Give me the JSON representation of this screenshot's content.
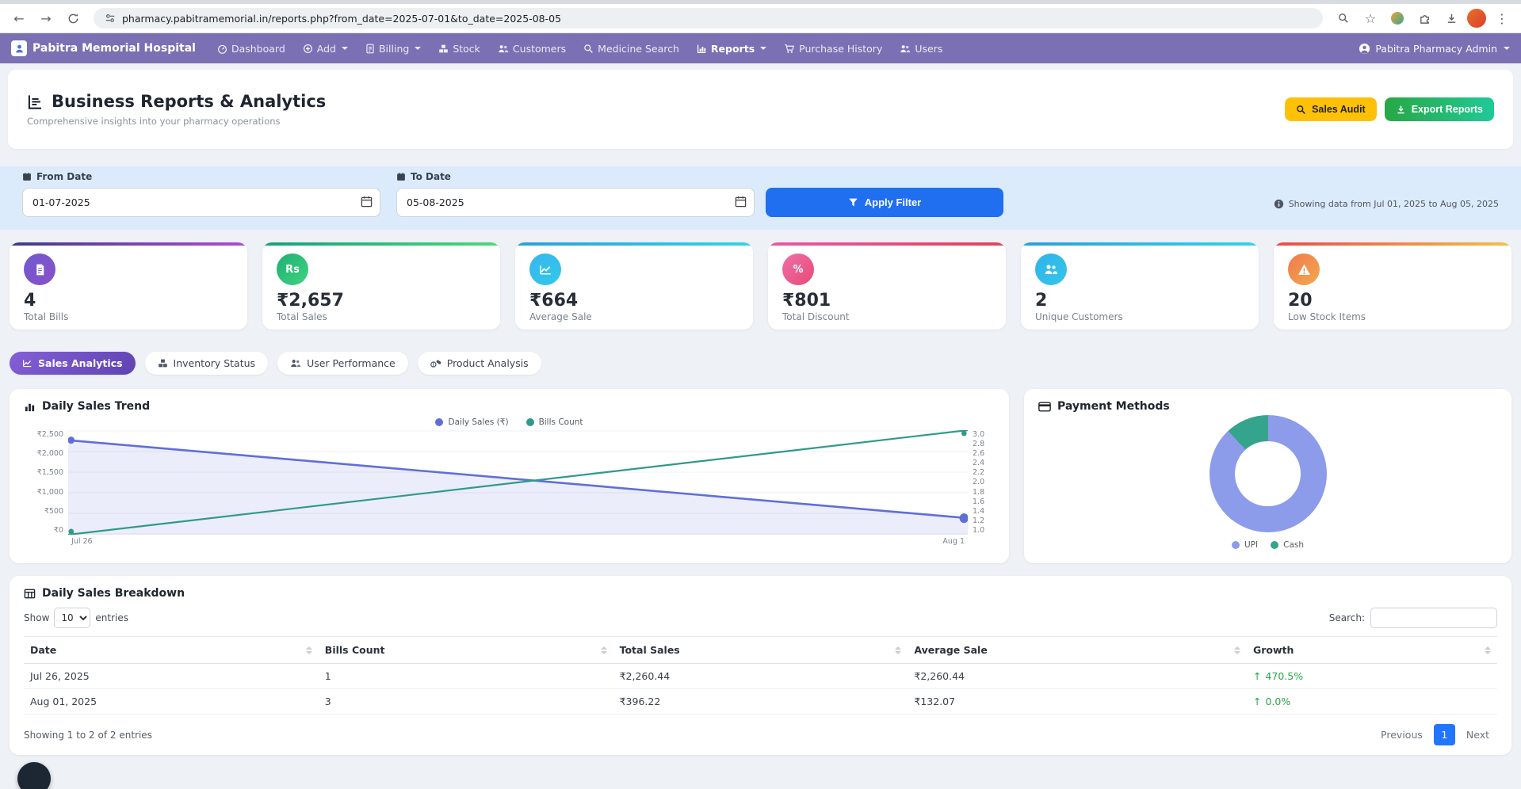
{
  "browser": {
    "url": "pharmacy.pabitramemorial.in/reports.php?from_date=2025-07-01&to_date=2025-08-05"
  },
  "navbar": {
    "brand": "Pabitra Memorial Hospital",
    "items": [
      {
        "label": "Dashboard"
      },
      {
        "label": "Add"
      },
      {
        "label": "Billing"
      },
      {
        "label": "Stock"
      },
      {
        "label": "Customers"
      },
      {
        "label": "Medicine Search"
      },
      {
        "label": "Reports"
      },
      {
        "label": "Purchase History"
      },
      {
        "label": "Users"
      }
    ],
    "user": "Pabitra Pharmacy Admin"
  },
  "header": {
    "title": "Business Reports & Analytics",
    "subtitle": "Comprehensive insights into your pharmacy operations",
    "sales_audit_label": "Sales Audit",
    "export_reports_label": "Export Reports"
  },
  "filter": {
    "from_label": "From Date",
    "from_value": "01-07-2025",
    "to_label": "To Date",
    "to_value": "05-08-2025",
    "apply_label": "Apply Filter",
    "info_text": "Showing data from Jul 01, 2025 to Aug 05, 2025"
  },
  "stats": [
    {
      "value": "4",
      "label": "Total Bills",
      "icon": "bill-icon",
      "bar": "linear-gradient(90deg,#3f3c84,#b04bd6)",
      "circle": "linear-gradient(135deg,#6f5bd0,#8a4fc8)"
    },
    {
      "value": "₹2,657",
      "label": "Total Sales",
      "icon": "rupee-icon",
      "icon_text": "Rs",
      "bar": "linear-gradient(90deg,#14a07c,#4cd97a)",
      "circle": "linear-gradient(135deg,#1fae74,#3ed47f)"
    },
    {
      "value": "₹664",
      "label": "Average Sale",
      "icon": "chart-line-icon",
      "bar": "linear-gradient(90deg,#2a9fd8,#35d3e8)",
      "circle": "linear-gradient(135deg,#38b6f0,#31c8e8)"
    },
    {
      "value": "₹801",
      "label": "Total Discount",
      "icon": "percent-icon",
      "icon_text": "%",
      "bar": "linear-gradient(90deg,#e858a8,#e04556)",
      "circle": "linear-gradient(135deg,#ee6fa8,#e84a77)"
    },
    {
      "value": "2",
      "label": "Unique Customers",
      "icon": "users-icon",
      "bar": "linear-gradient(90deg,#2a9fd8,#35d3e8)",
      "circle": "linear-gradient(135deg,#2fb3ea,#35c6e8)"
    },
    {
      "value": "20",
      "label": "Low Stock Items",
      "icon": "warning-icon",
      "bar": "linear-gradient(90deg,#e84b4b,#f3c04a)",
      "circle": "linear-gradient(135deg,#ef7a4e,#f3a94e)"
    }
  ],
  "tabs": [
    {
      "label": "Sales Analytics",
      "active": true
    },
    {
      "label": "Inventory Status",
      "active": false
    },
    {
      "label": "User Performance",
      "active": false
    },
    {
      "label": "Product Analysis",
      "active": false
    }
  ],
  "charts": {
    "trend_title": "Daily Sales Trend",
    "payment_title": "Payment Methods"
  },
  "chart_data": [
    {
      "type": "line",
      "title": "Daily Sales Trend",
      "x": [
        "Jul 26",
        "Aug 1"
      ],
      "series": [
        {
          "name": "Daily Sales (₹)",
          "values": [
            2260.44,
            396.22
          ],
          "axis": "left",
          "color": "#5f6fd8"
        },
        {
          "name": "Bills Count",
          "values": [
            1,
            3
          ],
          "axis": "right",
          "color": "#2f9a8a"
        }
      ],
      "left_axis": {
        "min": 0,
        "max": 2500,
        "ticks": [
          "₹2,500",
          "₹2,000",
          "₹1,500",
          "₹1,000",
          "₹500",
          "₹0"
        ]
      },
      "right_axis": {
        "min": 1.0,
        "max": 3.0,
        "ticks": [
          "3.0",
          "2.8",
          "2.6",
          "2.4",
          "2.2",
          "2.0",
          "1.8",
          "1.6",
          "1.4",
          "1.2",
          "1.0"
        ]
      },
      "fill_under_first_series": true,
      "legend_position": "top",
      "grid": true
    },
    {
      "type": "doughnut",
      "title": "Payment Methods",
      "labels": [
        "UPI",
        "Cash"
      ],
      "values": [
        88,
        12
      ],
      "unit": "percent-estimate",
      "colors": [
        "#8c9ceb",
        "#35a48c"
      ],
      "legend_position": "bottom"
    }
  ],
  "table": {
    "title": "Daily Sales Breakdown",
    "show_label": "Show",
    "page_size": "10",
    "entries_label": "entries",
    "search_label": "Search:",
    "columns": [
      "Date",
      "Bills Count",
      "Total Sales",
      "Average Sale",
      "Growth"
    ],
    "rows": [
      {
        "date": "Jul 26, 2025",
        "bills": "1",
        "total": "₹2,260.44",
        "avg": "₹2,260.44",
        "growth": "470.5%"
      },
      {
        "date": "Aug 01, 2025",
        "bills": "3",
        "total": "₹396.22",
        "avg": "₹132.07",
        "growth": "0.0%"
      }
    ],
    "growth_arrow": "↑",
    "footer": "Showing 1 to 2 of 2 entries",
    "prev_label": "Previous",
    "page": "1",
    "next_label": "Next"
  }
}
